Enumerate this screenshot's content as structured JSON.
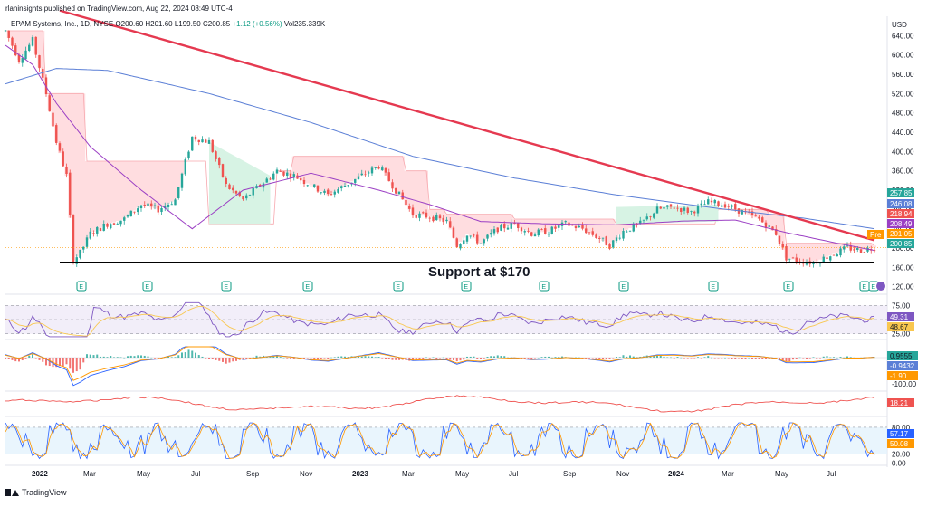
{
  "header": {
    "published": "rlaninsights published on TradingView.com, Aug 22, 2024 08:49 UTC-4",
    "symbol_name": "EPAM Systems, Inc., 1D, NYSE",
    "ohlc": "O200.60 H201.60 L199.50 C200.85",
    "change": "+1.12 (+0.56%)",
    "volume": "Vol235.339K"
  },
  "currency": "USD",
  "footer": {
    "brand": "TradingView"
  },
  "colors": {
    "up": "#26a69a",
    "down": "#ef5350",
    "trend": "#e53950",
    "ma_long": "#5b7fd6",
    "ma_mid": "#9b3fc4",
    "rsi": "#7e57c2",
    "band_fill": "#ffdde0",
    "band_up_fill": "#d7f3e4"
  },
  "chart_data": [
    {
      "type": "candlestick",
      "pane": "price",
      "x_ticks": [
        "2022",
        "Mar",
        "May",
        "Jul",
        "Sep",
        "Nov",
        "2023",
        "Mar",
        "May",
        "Jul",
        "Sep",
        "Nov",
        "2024",
        "Mar",
        "May",
        "Jul"
      ],
      "y_ticks": [
        640,
        600,
        560,
        520,
        480,
        440,
        400,
        360,
        320,
        280,
        240,
        200,
        160,
        120
      ],
      "ylim": [
        110,
        680
      ],
      "price_path": [
        [
          0,
          650
        ],
        [
          4,
          590
        ],
        [
          8,
          630
        ],
        [
          12,
          520
        ],
        [
          15,
          420
        ],
        [
          18,
          350
        ],
        [
          20,
          175
        ],
        [
          22,
          190
        ],
        [
          25,
          230
        ],
        [
          30,
          250
        ],
        [
          35,
          260
        ],
        [
          40,
          290
        ],
        [
          45,
          280
        ],
        [
          50,
          300
        ],
        [
          55,
          430
        ],
        [
          60,
          420
        ],
        [
          65,
          330
        ],
        [
          70,
          300
        ],
        [
          75,
          330
        ],
        [
          80,
          360
        ],
        [
          85,
          350
        ],
        [
          90,
          330
        ],
        [
          95,
          310
        ],
        [
          100,
          330
        ],
        [
          105,
          350
        ],
        [
          110,
          370
        ],
        [
          115,
          320
        ],
        [
          120,
          270
        ],
        [
          125,
          265
        ],
        [
          130,
          255
        ],
        [
          133,
          205
        ],
        [
          136,
          230
        ],
        [
          140,
          210
        ],
        [
          145,
          240
        ],
        [
          150,
          250
        ],
        [
          155,
          230
        ],
        [
          160,
          235
        ],
        [
          165,
          250
        ],
        [
          170,
          240
        ],
        [
          175,
          220
        ],
        [
          178,
          205
        ],
        [
          182,
          235
        ],
        [
          187,
          250
        ],
        [
          192,
          280
        ],
        [
          197,
          285
        ],
        [
          202,
          275
        ],
        [
          207,
          295
        ],
        [
          212,
          290
        ],
        [
          217,
          275
        ],
        [
          222,
          260
        ],
        [
          227,
          230
        ],
        [
          230,
          180
        ],
        [
          233,
          175
        ],
        [
          238,
          170
        ],
        [
          243,
          185
        ],
        [
          248,
          200
        ],
        [
          252,
          195
        ],
        [
          256,
          201
        ]
      ],
      "ma_long_path": [
        [
          0,
          540
        ],
        [
          15,
          572
        ],
        [
          30,
          568
        ],
        [
          60,
          520
        ],
        [
          90,
          460
        ],
        [
          120,
          390
        ],
        [
          150,
          345
        ],
        [
          180,
          310
        ],
        [
          210,
          282
        ],
        [
          235,
          262
        ],
        [
          256,
          240
        ]
      ],
      "ma_mid_path": [
        [
          0,
          620
        ],
        [
          8,
          580
        ],
        [
          15,
          500
        ],
        [
          25,
          410
        ],
        [
          40,
          320
        ],
        [
          55,
          240
        ],
        [
          70,
          320
        ],
        [
          90,
          355
        ],
        [
          110,
          320
        ],
        [
          125,
          290
        ],
        [
          140,
          255
        ],
        [
          160,
          250
        ],
        [
          180,
          248
        ],
        [
          200,
          256
        ],
        [
          215,
          258
        ],
        [
          230,
          232
        ],
        [
          245,
          210
        ],
        [
          256,
          195
        ]
      ],
      "trendline": {
        "from": [
          16,
          692
        ],
        "to": [
          256,
          216
        ]
      },
      "support": {
        "value": 170,
        "label": "Support at $170"
      },
      "resistance_band": [
        [
          0,
          650,
          640
        ],
        [
          12,
          520,
          640
        ],
        [
          20,
          520,
          620
        ],
        [
          24,
          380,
          620
        ],
        [
          55,
          380,
          380
        ],
        [
          60,
          250,
          250
        ],
        [
          80,
          360,
          360
        ],
        [
          85,
          390,
          390
        ],
        [
          115,
          390,
          390
        ],
        [
          118,
          360,
          360
        ],
        [
          125,
          280,
          280
        ],
        [
          130,
          270,
          270
        ],
        [
          150,
          260,
          260
        ],
        [
          180,
          250,
          250
        ],
        [
          210,
          280,
          280
        ],
        [
          225,
          270,
          270
        ],
        [
          230,
          210,
          210
        ],
        [
          256,
          205,
          205
        ]
      ],
      "earnings_markers": [
        "E",
        "E",
        "E",
        "E",
        "E",
        "E",
        "E",
        "E",
        "E",
        "E",
        "E",
        "E"
      ],
      "price_labels": [
        {
          "value": 257.85,
          "text": "257.85",
          "color": "#26a69a"
        },
        {
          "value": 246.08,
          "text": "246.08",
          "color": "#5b7fd6"
        },
        {
          "value": 218.94,
          "text": "218.94",
          "color": "#ef5350"
        },
        {
          "value": 208.49,
          "text": "208.49",
          "color": "#9b3fc4"
        },
        {
          "value": 201.05,
          "text": "201.05",
          "color": "#ff9800"
        },
        {
          "value": 200.85,
          "text": "200.85",
          "color": "#26a69a"
        }
      ],
      "pre_label": "Pre"
    },
    {
      "type": "line",
      "pane": "rsi",
      "y_ticks": [
        75.0,
        25.0
      ],
      "ylim": [
        15,
        90
      ],
      "labels": [
        {
          "text": "49.31",
          "color": "#7e57c2"
        },
        {
          "text": "48.67",
          "color": "#f9c74f"
        }
      ]
    },
    {
      "type": "line",
      "pane": "macd",
      "y_ticks": [
        -100.0
      ],
      "labels": [
        {
          "text": "0.9555",
          "color": "#26a69a"
        },
        {
          "text": "-0.9432",
          "color": "#5b7fd6"
        },
        {
          "text": "-1.90",
          "color": "#ff9800"
        }
      ]
    },
    {
      "type": "line",
      "pane": "volatility",
      "labels": [
        {
          "text": "18.21",
          "color": "#ef5350"
        }
      ]
    },
    {
      "type": "line",
      "pane": "stochastic",
      "y_ticks": [
        80.0,
        20.0,
        0.0
      ],
      "ylim": [
        -5,
        100
      ],
      "labels": [
        {
          "text": "57.17",
          "color": "#2962ff"
        },
        {
          "text": "50.08",
          "color": "#ff9800"
        }
      ]
    }
  ]
}
